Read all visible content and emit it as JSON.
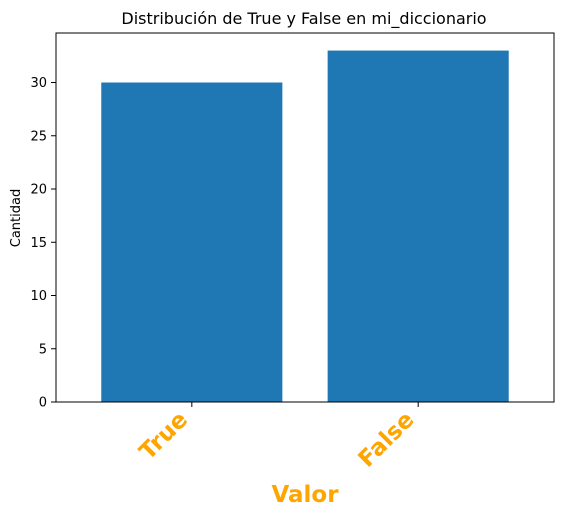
{
  "chart_data": {
    "type": "bar",
    "title": "Distribución de True y False en mi_diccionario",
    "xlabel": "Valor",
    "ylabel": "Cantidad",
    "categories": [
      "True",
      "False"
    ],
    "values": [
      30,
      33
    ],
    "ylim": [
      0,
      34.65
    ],
    "yticks": [
      0,
      5,
      10,
      15,
      20,
      25,
      30
    ],
    "grid": false,
    "bar_color": "#1f77b4",
    "x_label_color": "#ffa500",
    "tick_label_color": "#ffa500"
  }
}
